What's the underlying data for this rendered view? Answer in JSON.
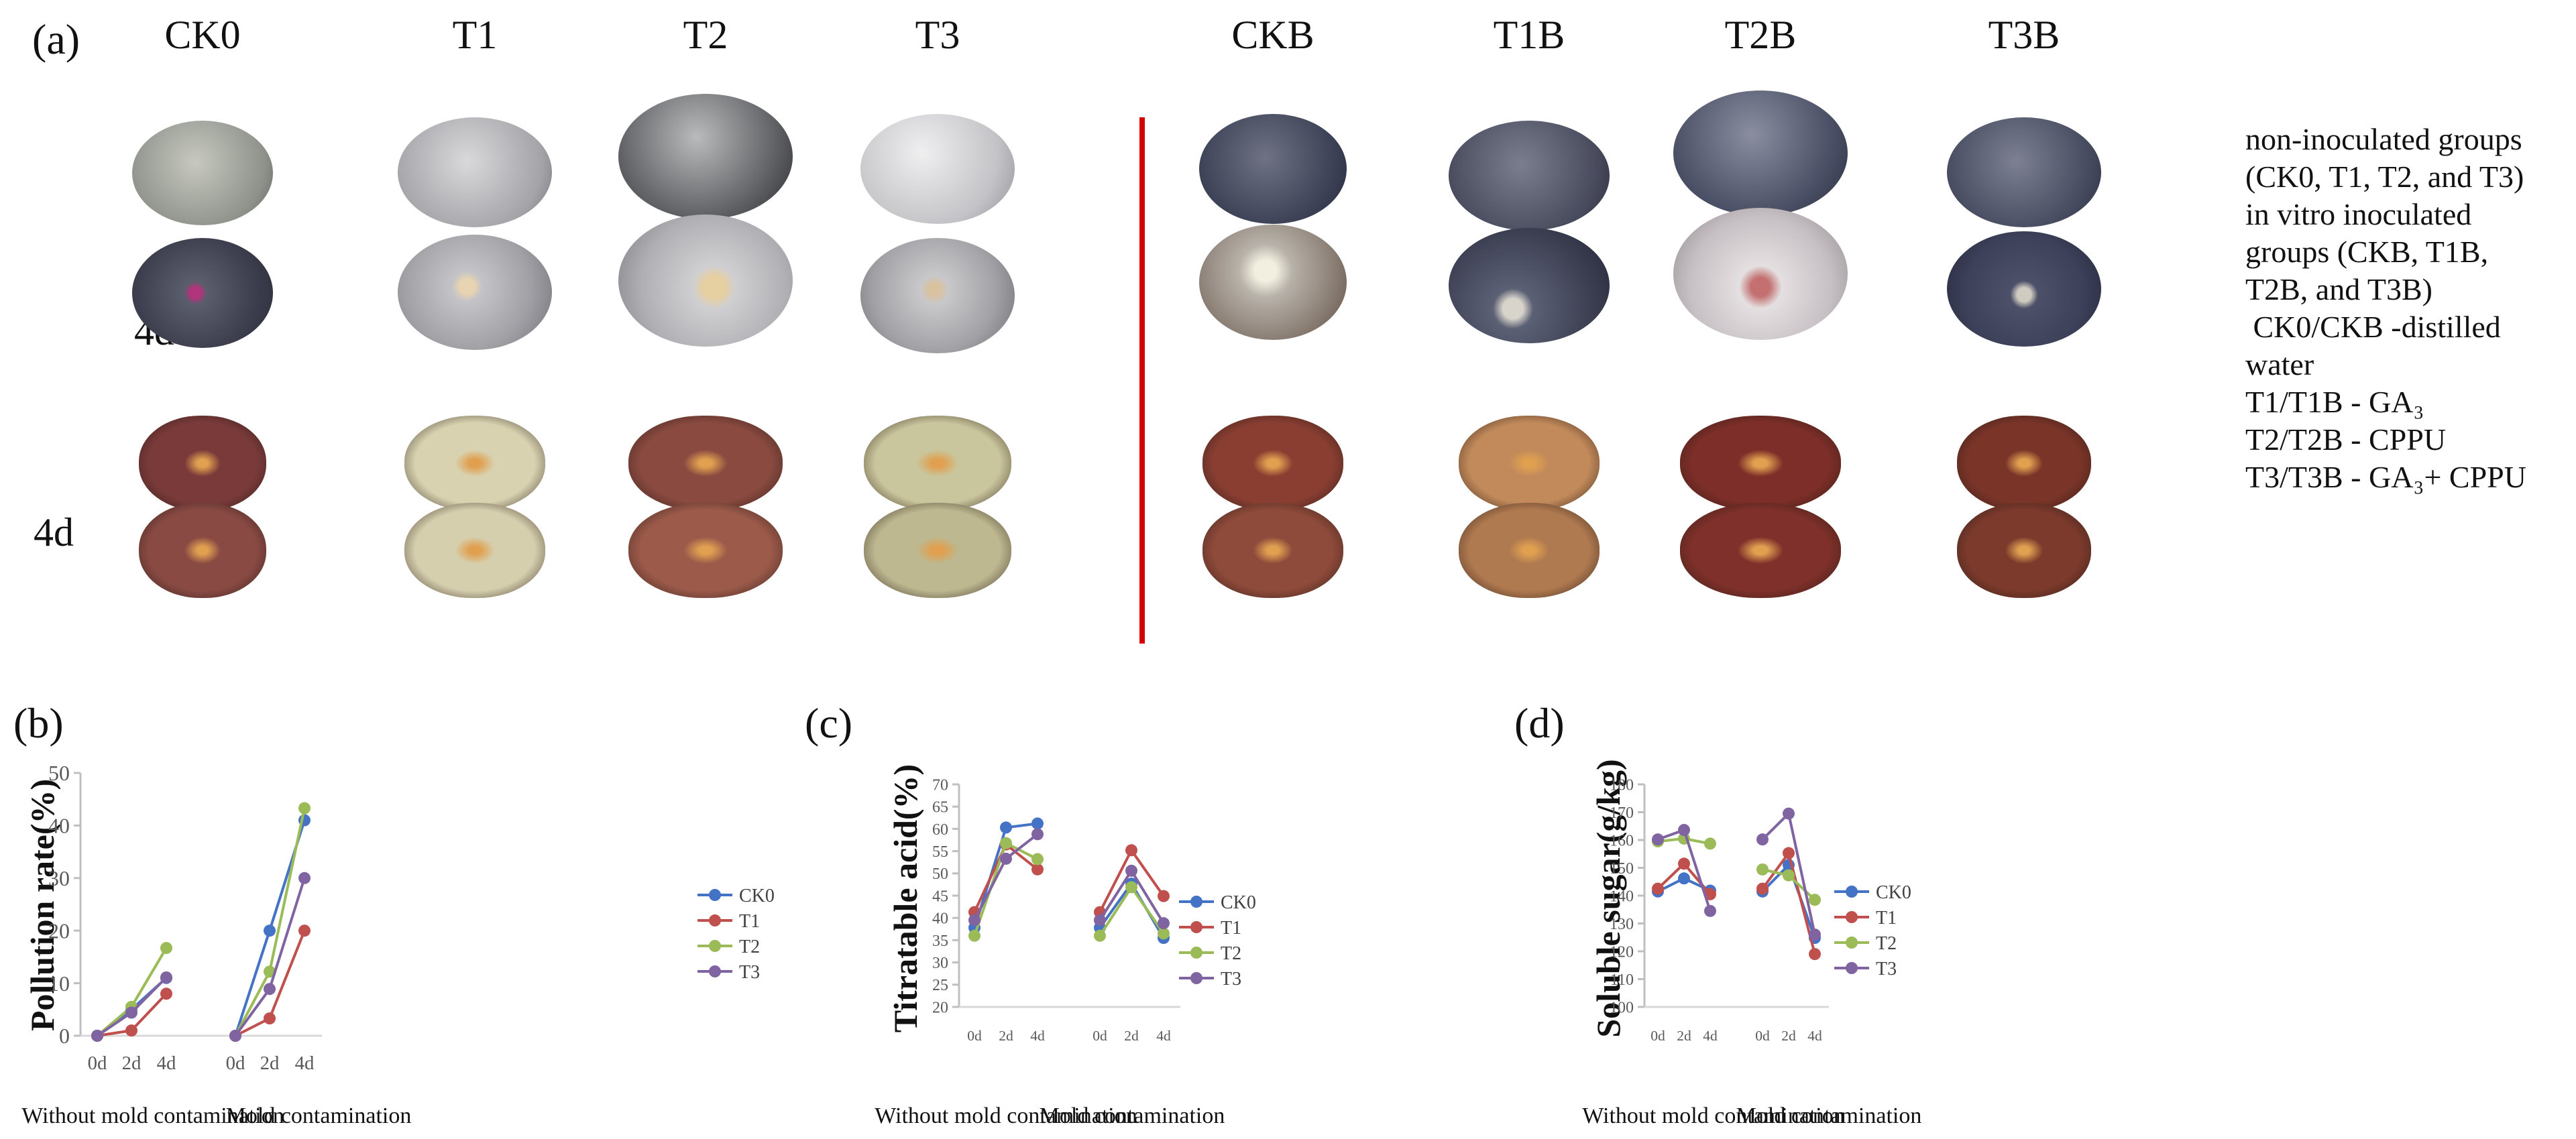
{
  "figure": {
    "panel_a": {
      "label": "(a)",
      "columns": [
        "CK0",
        "T1",
        "T2",
        "T3",
        "CKB",
        "T1B",
        "T2B",
        "T3B"
      ],
      "rows": [
        "2d",
        "4d",
        "4d"
      ],
      "legend_lines": [
        "non-inoculated groups",
        "(CK0, T1, T2, and T3)",
        "in vitro inoculated",
        "groups (CKB, T1B,",
        "T2B, and T3B)",
        " CK0/CKB -distilled",
        "water",
        "T1/T1B - GA₃",
        "T2/T2B - CPPU",
        "T3/T3B - GA₃+ CPPU"
      ],
      "divider_color": "#d40000"
    },
    "series_colors": {
      "CK0": "#4472C4",
      "T1": "#C0504D",
      "T2": "#9BBB59",
      "T3": "#8064A2"
    }
  },
  "chart_data": [
    {
      "panel": "(b)",
      "type": "line",
      "title": "",
      "ylabel": "Pollution rate(%)",
      "xlabel": "",
      "x": [
        "0d",
        "2d",
        "4d",
        "0d",
        "2d",
        "4d"
      ],
      "groups": [
        "Without mold contamination",
        "Mold contamination"
      ],
      "ylim": [
        0,
        50
      ],
      "yticks": [
        0,
        10,
        20,
        30,
        40,
        50
      ],
      "legend": [
        "CK0",
        "T1",
        "T2",
        "T3"
      ],
      "legend_position": "right",
      "grid": false,
      "series": [
        {
          "name": "CK0",
          "values": [
            0,
            5,
            11,
            0,
            20,
            41
          ]
        },
        {
          "name": "T1",
          "values": [
            0,
            1,
            8,
            0,
            3.3,
            20
          ]
        },
        {
          "name": "T2",
          "values": [
            0,
            5.5,
            16.7,
            0,
            12.2,
            43.3
          ]
        },
        {
          "name": "T3",
          "values": [
            0,
            4.4,
            11.1,
            0,
            8.9,
            30
          ]
        }
      ]
    },
    {
      "panel": "(c)",
      "type": "line",
      "title": "",
      "ylabel": "Titratable acid(%)",
      "xlabel": "",
      "x": [
        "0d",
        "2d",
        "4d",
        "0d",
        "2d",
        "4d"
      ],
      "groups": [
        "Without mold contamination",
        "Mold contamination"
      ],
      "ylim": [
        20,
        70
      ],
      "yticks": [
        20,
        25,
        30,
        35,
        40,
        45,
        50,
        55,
        60,
        65,
        70
      ],
      "legend": [
        "CK0",
        "T1",
        "T2",
        "T3"
      ],
      "legend_position": "right",
      "grid": false,
      "series": [
        {
          "name": "CK0",
          "values": [
            37.8,
            60.3,
            61.2,
            37.8,
            47.7,
            35.5
          ]
        },
        {
          "name": "T1",
          "values": [
            41.3,
            56.5,
            50.9,
            41.3,
            55.2,
            44.9
          ]
        },
        {
          "name": "T2",
          "values": [
            36.0,
            56.8,
            53.2,
            36.0,
            46.9,
            36.5
          ]
        },
        {
          "name": "T3",
          "values": [
            39.5,
            53.3,
            58.8,
            39.5,
            50.6,
            38.8
          ]
        }
      ]
    },
    {
      "panel": "(d)",
      "type": "line",
      "title": "",
      "ylabel": "Soluble sugar(g/kg)",
      "xlabel": "",
      "x": [
        "0d",
        "2d",
        "4d",
        "0d",
        "2d",
        "4d"
      ],
      "groups": [
        "Without mold contamination",
        "Mold contamination"
      ],
      "ylim": [
        100,
        180
      ],
      "yticks": [
        100,
        110,
        120,
        130,
        140,
        150,
        160,
        170,
        180
      ],
      "legend": [
        "CK0",
        "T1",
        "T2",
        "T3"
      ],
      "legend_position": "right",
      "grid": false,
      "series": [
        {
          "name": "CK0",
          "values": [
            141.5,
            146.2,
            141.8,
            141.5,
            151.0,
            124.8
          ]
        },
        {
          "name": "T1",
          "values": [
            142.5,
            151.5,
            140.5,
            142.5,
            155.3,
            119.0
          ]
        },
        {
          "name": "T2",
          "values": [
            159.5,
            160.5,
            158.7,
            149.4,
            147.3,
            138.5
          ]
        },
        {
          "name": "T3",
          "values": [
            160.2,
            163.6,
            134.5,
            160.2,
            169.5,
            126.0
          ]
        }
      ]
    }
  ]
}
